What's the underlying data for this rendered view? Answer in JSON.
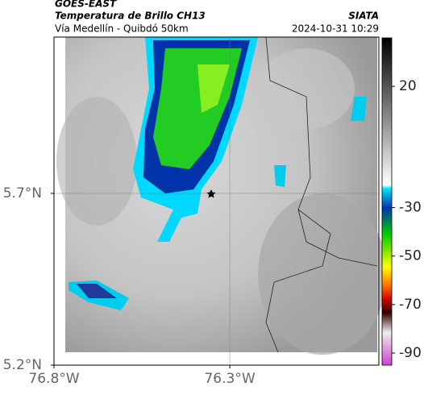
{
  "header": {
    "title": "GOES-EAST",
    "subtitle": "Temperatura de Brillo CH13",
    "source": "SIATA",
    "location": "Vía Medellín - Quibdó 50km",
    "datetime": "2024-10-31 10:29"
  },
  "map": {
    "xlim": [
      -76.8,
      -75.876
    ],
    "ylim": [
      5.2,
      6.155
    ],
    "xticks": [
      {
        "value": -76.8,
        "label": "76.8°W"
      },
      {
        "value": -76.3,
        "label": "76.3°W"
      }
    ],
    "yticks": [
      {
        "value": 5.2,
        "label": "5.2°N"
      },
      {
        "value": 5.7,
        "label": "5.7°N"
      }
    ],
    "grid": true
  },
  "colorbar": {
    "lim": [
      -95,
      40
    ],
    "ticks": [
      20,
      -30,
      -50,
      -70,
      -90
    ]
  }
}
